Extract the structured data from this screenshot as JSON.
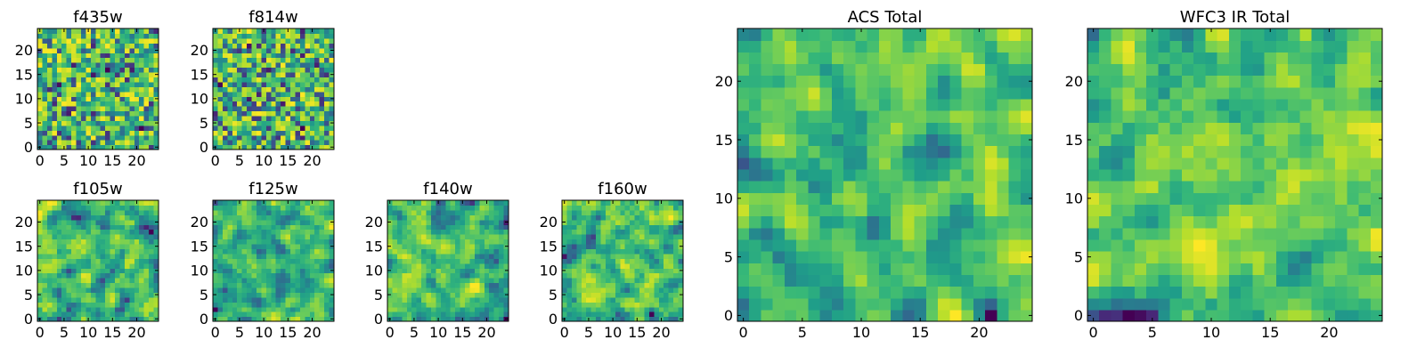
{
  "chart_data": [
    {
      "type": "heatmap",
      "title": "f435w",
      "rows": 25,
      "cols": 25,
      "xlim": [
        -0.5,
        24.5
      ],
      "ylim": [
        -0.5,
        24.5
      ],
      "xticks": [
        0,
        5,
        10,
        15,
        20
      ],
      "yticks": [
        0,
        5,
        10,
        15,
        20
      ],
      "colormap": "viridis",
      "seed": 11,
      "mode": "noise"
    },
    {
      "type": "heatmap",
      "title": "f814w",
      "rows": 25,
      "cols": 25,
      "xlim": [
        -0.5,
        24.5
      ],
      "ylim": [
        -0.5,
        24.5
      ],
      "xticks": [
        0,
        5,
        10,
        15,
        20
      ],
      "yticks": [
        0,
        5,
        10,
        15,
        20
      ],
      "colormap": "viridis",
      "seed": 23,
      "mode": "noise"
    },
    {
      "type": "heatmap",
      "title": "f105w",
      "rows": 25,
      "cols": 25,
      "xlim": [
        -0.5,
        24.5
      ],
      "ylim": [
        -0.5,
        24.5
      ],
      "xticks": [
        0,
        5,
        10,
        15,
        20
      ],
      "yticks": [
        0,
        5,
        10,
        15,
        20
      ],
      "colormap": "viridis",
      "seed": 37,
      "mode": "smooth"
    },
    {
      "type": "heatmap",
      "title": "f125w",
      "rows": 25,
      "cols": 25,
      "xlim": [
        -0.5,
        24.5
      ],
      "ylim": [
        -0.5,
        24.5
      ],
      "xticks": [
        0,
        5,
        10,
        15,
        20
      ],
      "yticks": [
        0,
        5,
        10,
        15,
        20
      ],
      "colormap": "viridis",
      "seed": 41,
      "mode": "smooth"
    },
    {
      "type": "heatmap",
      "title": "f140w",
      "rows": 25,
      "cols": 25,
      "xlim": [
        -0.5,
        24.5
      ],
      "ylim": [
        -0.5,
        24.5
      ],
      "xticks": [
        0,
        5,
        10,
        15,
        20
      ],
      "yticks": [
        0,
        5,
        10,
        15,
        20
      ],
      "colormap": "viridis",
      "seed": 53,
      "mode": "smooth"
    },
    {
      "type": "heatmap",
      "title": "f160w",
      "rows": 25,
      "cols": 25,
      "xlim": [
        -0.5,
        24.5
      ],
      "ylim": [
        -0.5,
        24.5
      ],
      "xticks": [
        0,
        5,
        10,
        15,
        20
      ],
      "yticks": [
        0,
        5,
        10,
        15,
        20
      ],
      "colormap": "viridis",
      "seed": 67,
      "mode": "smooth"
    },
    {
      "type": "heatmap",
      "title": "ACS Total",
      "rows": 25,
      "cols": 25,
      "xlim": [
        -0.5,
        24.5
      ],
      "ylim": [
        -0.5,
        24.5
      ],
      "xticks": [
        0,
        5,
        10,
        15,
        20
      ],
      "yticks": [
        0,
        5,
        10,
        15,
        20
      ],
      "colormap": "viridis",
      "seed": 79,
      "mode": "total"
    },
    {
      "type": "heatmap",
      "title": "WFC3 IR Total",
      "rows": 25,
      "cols": 25,
      "xlim": [
        -0.5,
        24.5
      ],
      "ylim": [
        -0.5,
        24.5
      ],
      "xticks": [
        0,
        5,
        10,
        15,
        20
      ],
      "yticks": [
        0,
        5,
        10,
        15,
        20
      ],
      "colormap": "viridis",
      "seed": 97,
      "mode": "total"
    }
  ]
}
